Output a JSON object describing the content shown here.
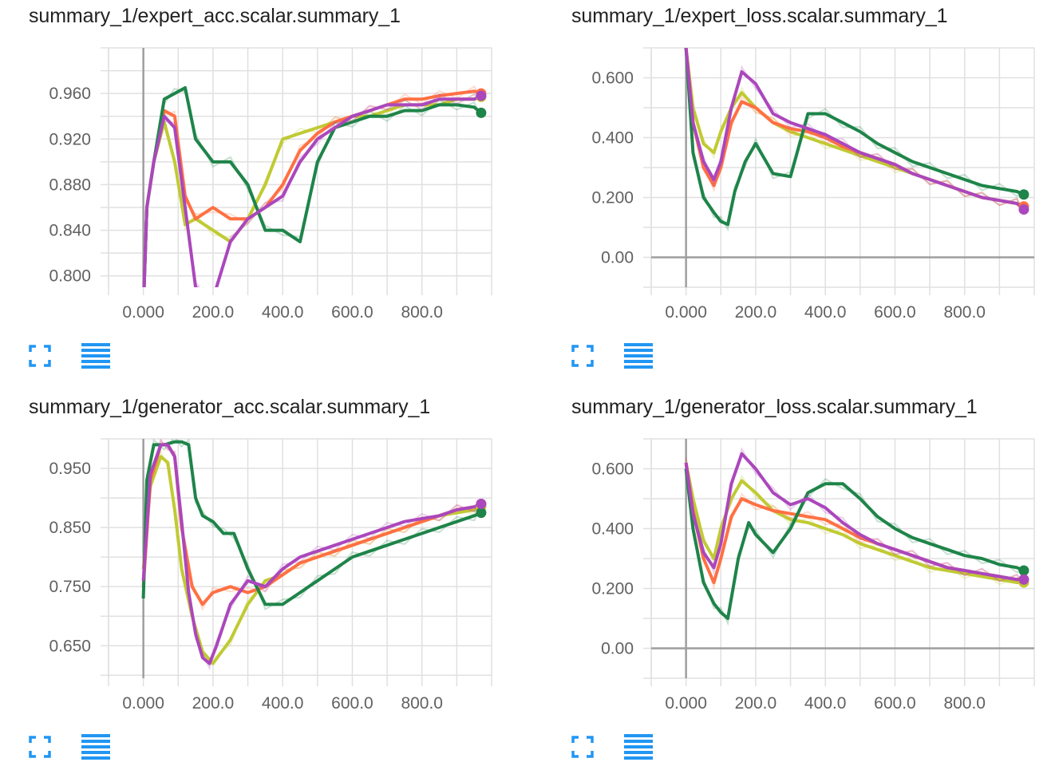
{
  "colors": {
    "run_orange": "#ff7043",
    "run_olive": "#c0ca33",
    "run_green": "#1e8449",
    "run_purple": "#ab47bc",
    "grid": "#e0e0e0",
    "zero_axis": "#9e9e9e",
    "icon_blue": "#2196f3"
  },
  "icons": {
    "expand": "fullscreen-icon",
    "data": "list-icon"
  },
  "chart_data": [
    {
      "type": "line",
      "title": "summary_1/expert_acc.scalar.summary_1",
      "xlim": [
        -100,
        1000
      ],
      "ylim": [
        0.79,
        1.0
      ],
      "xticks": [
        0,
        200,
        400,
        600,
        800
      ],
      "xtick_labels": [
        "0.000",
        "200.0",
        "400.0",
        "600.0",
        "800.0"
      ],
      "yticks": [
        0.8,
        0.84,
        0.88,
        0.92,
        0.96
      ],
      "ytick_labels": [
        "0.800",
        "0.840",
        "0.880",
        "0.920",
        "0.960"
      ],
      "grid": true,
      "series": [
        {
          "color": "#c0ca33",
          "x": [
            0,
            10,
            30,
            60,
            90,
            120,
            150,
            200,
            250,
            300,
            350,
            400,
            450,
            500,
            550,
            600,
            650,
            700,
            750,
            800,
            850,
            900,
            950,
            970
          ],
          "y": [
            0.77,
            0.86,
            0.9,
            0.935,
            0.9,
            0.845,
            0.85,
            0.84,
            0.83,
            0.85,
            0.88,
            0.92,
            0.925,
            0.93,
            0.935,
            0.94,
            0.94,
            0.945,
            0.95,
            0.95,
            0.95,
            0.955,
            0.955,
            0.957
          ]
        },
        {
          "color": "#ff7043",
          "x": [
            0,
            10,
            30,
            60,
            90,
            120,
            150,
            200,
            250,
            300,
            350,
            400,
            450,
            500,
            550,
            600,
            650,
            700,
            750,
            800,
            850,
            900,
            950,
            970
          ],
          "y": [
            0.77,
            0.86,
            0.9,
            0.945,
            0.94,
            0.87,
            0.85,
            0.86,
            0.85,
            0.85,
            0.86,
            0.88,
            0.91,
            0.925,
            0.935,
            0.94,
            0.945,
            0.95,
            0.955,
            0.955,
            0.958,
            0.96,
            0.962,
            0.96
          ]
        },
        {
          "color": "#1e8449",
          "x": [
            0,
            10,
            30,
            60,
            90,
            120,
            150,
            200,
            250,
            300,
            350,
            400,
            450,
            500,
            550,
            600,
            650,
            700,
            750,
            800,
            850,
            900,
            950,
            970
          ],
          "y": [
            0.77,
            0.86,
            0.9,
            0.955,
            0.96,
            0.965,
            0.92,
            0.9,
            0.9,
            0.88,
            0.84,
            0.84,
            0.83,
            0.9,
            0.93,
            0.935,
            0.94,
            0.94,
            0.945,
            0.945,
            0.95,
            0.95,
            0.948,
            0.943
          ]
        },
        {
          "color": "#ab47bc",
          "x": [
            0,
            10,
            30,
            60,
            90,
            120,
            150,
            200,
            250,
            300,
            350,
            400,
            450,
            500,
            550,
            600,
            650,
            700,
            750,
            800,
            850,
            900,
            950,
            970
          ],
          "y": [
            0.77,
            0.86,
            0.9,
            0.94,
            0.93,
            0.86,
            0.79,
            0.78,
            0.83,
            0.85,
            0.86,
            0.87,
            0.9,
            0.92,
            0.93,
            0.94,
            0.945,
            0.95,
            0.95,
            0.95,
            0.955,
            0.955,
            0.955,
            0.958
          ]
        }
      ]
    },
    {
      "type": "line",
      "title": "summary_1/expert_loss.scalar.summary_1",
      "xlim": [
        -100,
        1000
      ],
      "ylim": [
        -0.1,
        0.7
      ],
      "xticks": [
        0,
        200,
        400,
        600,
        800
      ],
      "xtick_labels": [
        "0.000",
        "200.0",
        "400.0",
        "600.0",
        "800.0"
      ],
      "yticks": [
        0,
        0.2,
        0.4,
        0.6
      ],
      "ytick_labels": [
        "0.00",
        "0.200",
        "0.400",
        "0.600"
      ],
      "grid": true,
      "series": [
        {
          "color": "#c0ca33",
          "x": [
            0,
            20,
            50,
            80,
            100,
            130,
            160,
            200,
            250,
            300,
            350,
            400,
            450,
            500,
            550,
            600,
            650,
            700,
            750,
            800,
            850,
            900,
            950,
            970
          ],
          "y": [
            0.7,
            0.5,
            0.38,
            0.35,
            0.42,
            0.5,
            0.55,
            0.5,
            0.45,
            0.42,
            0.4,
            0.38,
            0.36,
            0.34,
            0.32,
            0.3,
            0.28,
            0.26,
            0.24,
            0.22,
            0.2,
            0.19,
            0.18,
            0.17
          ]
        },
        {
          "color": "#ff7043",
          "x": [
            0,
            20,
            50,
            80,
            100,
            130,
            160,
            200,
            250,
            300,
            350,
            400,
            450,
            500,
            550,
            600,
            650,
            700,
            750,
            800,
            850,
            900,
            950,
            970
          ],
          "y": [
            0.7,
            0.45,
            0.3,
            0.24,
            0.3,
            0.45,
            0.52,
            0.5,
            0.45,
            0.43,
            0.42,
            0.4,
            0.37,
            0.35,
            0.33,
            0.31,
            0.28,
            0.26,
            0.24,
            0.22,
            0.2,
            0.19,
            0.18,
            0.17
          ]
        },
        {
          "color": "#1e8449",
          "x": [
            0,
            20,
            50,
            80,
            100,
            120,
            140,
            170,
            200,
            250,
            300,
            350,
            400,
            450,
            500,
            550,
            600,
            650,
            700,
            750,
            800,
            850,
            900,
            950,
            970
          ],
          "y": [
            0.7,
            0.35,
            0.2,
            0.15,
            0.12,
            0.11,
            0.22,
            0.32,
            0.38,
            0.28,
            0.27,
            0.48,
            0.48,
            0.45,
            0.42,
            0.38,
            0.35,
            0.32,
            0.3,
            0.28,
            0.26,
            0.24,
            0.23,
            0.22,
            0.21
          ]
        },
        {
          "color": "#ab47bc",
          "x": [
            0,
            20,
            50,
            80,
            100,
            130,
            160,
            200,
            250,
            300,
            350,
            400,
            450,
            500,
            550,
            600,
            650,
            700,
            750,
            800,
            850,
            900,
            950,
            970
          ],
          "y": [
            0.7,
            0.45,
            0.32,
            0.26,
            0.32,
            0.5,
            0.62,
            0.58,
            0.48,
            0.45,
            0.43,
            0.41,
            0.38,
            0.35,
            0.33,
            0.31,
            0.28,
            0.26,
            0.24,
            0.22,
            0.2,
            0.19,
            0.18,
            0.16
          ]
        }
      ]
    },
    {
      "type": "line",
      "title": "summary_1/generator_acc.scalar.summary_1",
      "xlim": [
        -100,
        1000
      ],
      "ylim": [
        0.595,
        1.0
      ],
      "xticks": [
        0,
        200,
        400,
        600,
        800
      ],
      "xtick_labels": [
        "0.000",
        "200.0",
        "400.0",
        "600.0",
        "800.0"
      ],
      "yticks": [
        0.65,
        0.75,
        0.85,
        0.95
      ],
      "ytick_labels": [
        "0.650",
        "0.750",
        "0.850",
        "0.950"
      ],
      "grid": true,
      "series": [
        {
          "color": "#c0ca33",
          "x": [
            0,
            20,
            50,
            70,
            90,
            110,
            140,
            170,
            200,
            250,
            300,
            350,
            400,
            450,
            500,
            550,
            600,
            650,
            700,
            750,
            800,
            850,
            900,
            950,
            970
          ],
          "y": [
            0.78,
            0.92,
            0.97,
            0.96,
            0.88,
            0.78,
            0.7,
            0.64,
            0.62,
            0.66,
            0.72,
            0.76,
            0.77,
            0.79,
            0.8,
            0.81,
            0.82,
            0.83,
            0.84,
            0.85,
            0.86,
            0.87,
            0.875,
            0.88,
            0.885
          ]
        },
        {
          "color": "#ff7043",
          "x": [
            0,
            20,
            50,
            70,
            90,
            110,
            140,
            170,
            200,
            250,
            300,
            350,
            400,
            450,
            500,
            550,
            600,
            650,
            700,
            750,
            800,
            850,
            900,
            950,
            970
          ],
          "y": [
            0.75,
            0.93,
            0.99,
            0.99,
            0.97,
            0.85,
            0.75,
            0.72,
            0.74,
            0.75,
            0.74,
            0.75,
            0.77,
            0.79,
            0.8,
            0.81,
            0.82,
            0.83,
            0.84,
            0.85,
            0.86,
            0.87,
            0.88,
            0.885,
            0.89
          ]
        },
        {
          "color": "#1e8449",
          "x": [
            0,
            10,
            30,
            60,
            90,
            110,
            130,
            150,
            170,
            200,
            230,
            260,
            300,
            350,
            400,
            450,
            500,
            550,
            600,
            650,
            700,
            750,
            800,
            850,
            900,
            950,
            970
          ],
          "y": [
            0.73,
            0.93,
            0.99,
            0.99,
            0.995,
            0.995,
            0.99,
            0.9,
            0.87,
            0.86,
            0.84,
            0.84,
            0.78,
            0.72,
            0.72,
            0.74,
            0.76,
            0.78,
            0.8,
            0.81,
            0.82,
            0.83,
            0.84,
            0.85,
            0.86,
            0.87,
            0.875
          ]
        },
        {
          "color": "#ab47bc",
          "x": [
            0,
            20,
            50,
            70,
            90,
            110,
            130,
            150,
            170,
            190,
            210,
            250,
            300,
            350,
            400,
            450,
            500,
            550,
            600,
            650,
            700,
            750,
            800,
            850,
            900,
            950,
            970
          ],
          "y": [
            0.76,
            0.94,
            0.99,
            0.99,
            0.97,
            0.86,
            0.74,
            0.67,
            0.63,
            0.62,
            0.65,
            0.72,
            0.76,
            0.75,
            0.78,
            0.8,
            0.81,
            0.82,
            0.83,
            0.84,
            0.85,
            0.86,
            0.865,
            0.87,
            0.88,
            0.885,
            0.89
          ]
        }
      ]
    },
    {
      "type": "line",
      "title": "summary_1/generator_loss.scalar.summary_1",
      "xlim": [
        -100,
        1000
      ],
      "ylim": [
        -0.1,
        0.7
      ],
      "xticks": [
        0,
        200,
        400,
        600,
        800
      ],
      "xtick_labels": [
        "0.000",
        "200.0",
        "400.0",
        "600.0",
        "800.0"
      ],
      "yticks": [
        0,
        0.2,
        0.4,
        0.6
      ],
      "ytick_labels": [
        "0.00",
        "0.200",
        "0.400",
        "0.600"
      ],
      "grid": true,
      "series": [
        {
          "color": "#c0ca33",
          "x": [
            0,
            20,
            50,
            80,
            100,
            130,
            160,
            200,
            250,
            300,
            350,
            400,
            450,
            500,
            550,
            600,
            650,
            700,
            750,
            800,
            850,
            900,
            950,
            970
          ],
          "y": [
            0.62,
            0.5,
            0.36,
            0.3,
            0.4,
            0.5,
            0.56,
            0.52,
            0.46,
            0.43,
            0.42,
            0.4,
            0.38,
            0.35,
            0.33,
            0.31,
            0.29,
            0.27,
            0.26,
            0.25,
            0.24,
            0.23,
            0.22,
            0.22
          ]
        },
        {
          "color": "#ff7043",
          "x": [
            0,
            20,
            50,
            80,
            100,
            130,
            160,
            200,
            250,
            300,
            350,
            400,
            450,
            500,
            550,
            600,
            650,
            700,
            750,
            800,
            850,
            900,
            950,
            970
          ],
          "y": [
            0.62,
            0.46,
            0.3,
            0.22,
            0.3,
            0.44,
            0.5,
            0.48,
            0.46,
            0.45,
            0.44,
            0.43,
            0.4,
            0.37,
            0.35,
            0.33,
            0.31,
            0.29,
            0.27,
            0.26,
            0.25,
            0.24,
            0.23,
            0.23
          ]
        },
        {
          "color": "#1e8449",
          "x": [
            0,
            20,
            50,
            80,
            100,
            120,
            150,
            180,
            200,
            250,
            300,
            350,
            400,
            450,
            500,
            550,
            600,
            650,
            700,
            750,
            800,
            850,
            900,
            950,
            970
          ],
          "y": [
            0.6,
            0.4,
            0.22,
            0.15,
            0.12,
            0.1,
            0.3,
            0.42,
            0.38,
            0.32,
            0.4,
            0.52,
            0.55,
            0.55,
            0.5,
            0.44,
            0.4,
            0.37,
            0.35,
            0.33,
            0.31,
            0.3,
            0.28,
            0.27,
            0.26
          ]
        },
        {
          "color": "#ab47bc",
          "x": [
            0,
            20,
            50,
            80,
            100,
            130,
            160,
            200,
            250,
            300,
            350,
            400,
            450,
            500,
            550,
            600,
            650,
            700,
            750,
            800,
            850,
            900,
            950,
            970
          ],
          "y": [
            0.62,
            0.45,
            0.32,
            0.27,
            0.35,
            0.55,
            0.65,
            0.6,
            0.52,
            0.48,
            0.5,
            0.47,
            0.42,
            0.38,
            0.35,
            0.33,
            0.31,
            0.29,
            0.27,
            0.26,
            0.25,
            0.24,
            0.23,
            0.23
          ]
        }
      ]
    }
  ]
}
